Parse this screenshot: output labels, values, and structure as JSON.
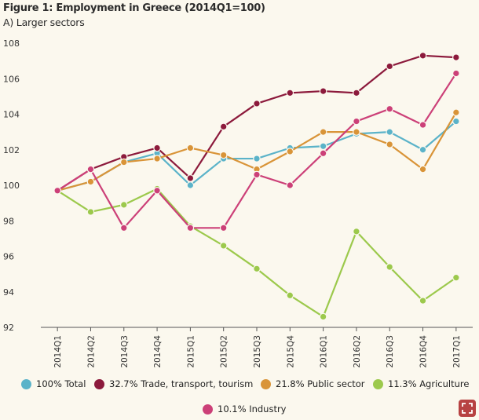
{
  "title": "Figure 1: Employment in Greece (2014Q1=100)",
  "subtitle": "A) Larger sectors",
  "icons": {
    "zoom": "zoom-icon"
  },
  "chart_data": {
    "type": "line",
    "title": "Figure 1: Employment in Greece (2014Q1=100)",
    "subtitle": "A) Larger sectors",
    "xlabel": "",
    "ylabel": "",
    "ylim": [
      92,
      108
    ],
    "yticks": [
      92,
      94,
      96,
      98,
      100,
      102,
      104,
      106,
      108
    ],
    "categories": [
      "2014Q1",
      "2014Q2",
      "2014Q3",
      "2014Q4",
      "2015Q1",
      "2015Q2",
      "2015Q3",
      "2015Q4",
      "2016Q1",
      "2016Q2",
      "2016Q3",
      "2016Q4",
      "2017Q1"
    ],
    "series": [
      {
        "name": "100% Total",
        "color": "#5bb3c9",
        "values": [
          99.7,
          100.2,
          101.3,
          101.8,
          100.0,
          101.5,
          101.5,
          102.1,
          102.2,
          102.9,
          103.0,
          102.0,
          103.6
        ]
      },
      {
        "name": "32.7% Trade, transport, tourism",
        "color": "#8c1a3c",
        "values": [
          99.7,
          100.9,
          101.6,
          102.1,
          100.4,
          103.3,
          104.6,
          105.2,
          105.3,
          105.2,
          106.7,
          107.3,
          107.2
        ]
      },
      {
        "name": "21.8% Public sector",
        "color": "#d99438",
        "values": [
          99.7,
          100.2,
          101.3,
          101.5,
          102.1,
          101.7,
          100.9,
          101.9,
          103.0,
          103.0,
          102.3,
          100.9,
          104.1
        ]
      },
      {
        "name": "11.3% Agriculture",
        "color": "#9cc94c",
        "values": [
          99.7,
          98.5,
          98.9,
          99.8,
          97.7,
          96.6,
          95.3,
          93.8,
          92.6,
          97.4,
          95.4,
          93.5,
          94.8
        ]
      },
      {
        "name": "10.1% Industry",
        "color": "#cc4078",
        "values": [
          99.7,
          100.9,
          97.6,
          99.7,
          97.6,
          97.6,
          100.6,
          100.0,
          101.8,
          103.6,
          104.3,
          103.4,
          106.3
        ]
      }
    ],
    "legend_position": "bottom"
  }
}
